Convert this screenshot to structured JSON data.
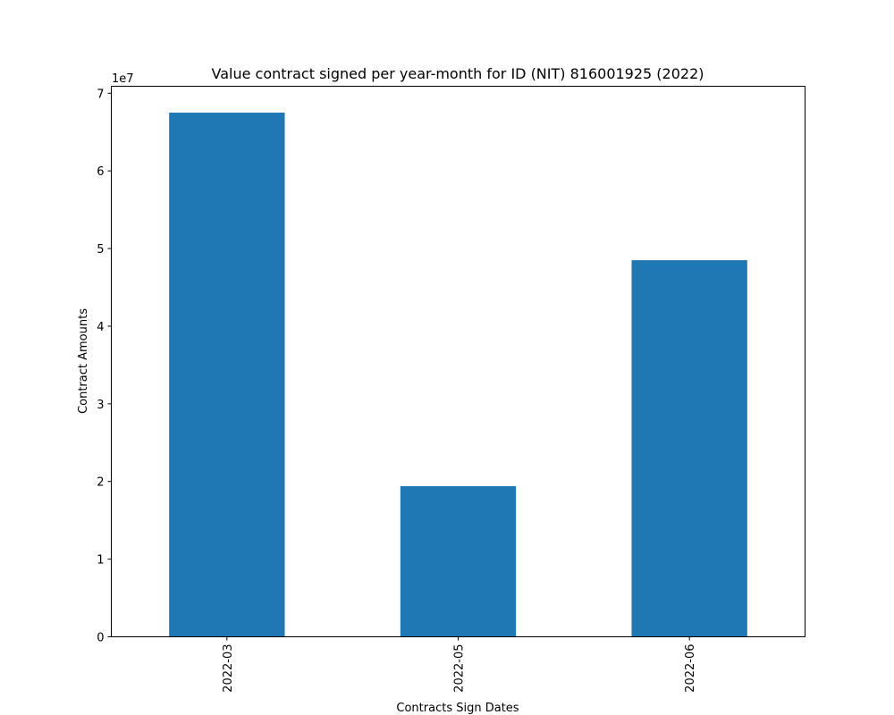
{
  "chart_data": {
    "type": "bar",
    "title": "Value contract signed per year-month for ID (NIT) 816001925 (2022)",
    "xlabel": "Contracts Sign Dates",
    "ylabel": "Contract Amounts",
    "y_offset_label": "1e7",
    "categories": [
      "2022-03",
      "2022-05",
      "2022-06"
    ],
    "values": [
      67500000,
      19400000,
      48500000
    ],
    "ylim": [
      0,
      70900000
    ],
    "yticks": [
      0,
      10000000,
      20000000,
      30000000,
      40000000,
      50000000,
      60000000,
      70000000
    ],
    "ytick_labels": [
      "0",
      "1",
      "2",
      "3",
      "4",
      "5",
      "6",
      "7"
    ],
    "grid": false,
    "bar_color": "#1f77b4"
  }
}
